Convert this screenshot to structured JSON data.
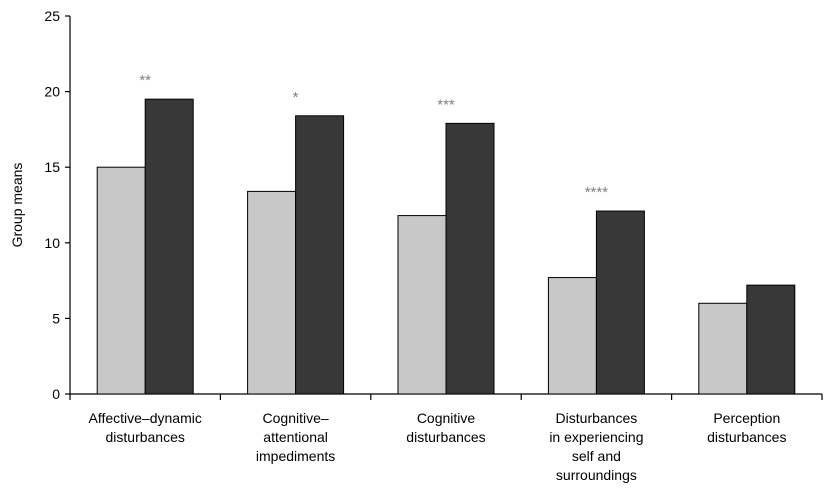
{
  "chart_data": {
    "type": "bar",
    "ylabel": "Group means",
    "ylim": [
      0,
      25
    ],
    "yticks": [
      0,
      5,
      10,
      15,
      20,
      25
    ],
    "categories": [
      [
        "Affective–dynamic",
        "disturbances"
      ],
      [
        "Cognitive–",
        "attentional",
        "impediments"
      ],
      [
        "Cognitive",
        "disturbances"
      ],
      [
        "Disturbances",
        "in experiencing",
        "self and",
        "surroundings"
      ],
      [
        "Perception",
        "disturbances"
      ]
    ],
    "series": [
      {
        "color": "#c8c8c8",
        "values": [
          15.0,
          13.4,
          11.8,
          7.7,
          6.0
        ]
      },
      {
        "color": "#383838",
        "values": [
          19.5,
          18.4,
          17.9,
          12.1,
          7.2
        ]
      }
    ],
    "significance": [
      "**",
      "*",
      "***",
      "****",
      ""
    ],
    "grid": false,
    "legend": "none"
  }
}
